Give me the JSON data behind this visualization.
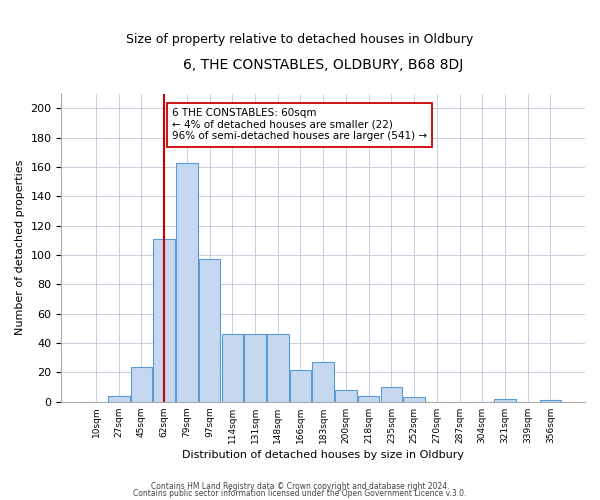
{
  "title": "6, THE CONSTABLES, OLDBURY, B68 8DJ",
  "subtitle": "Size of property relative to detached houses in Oldbury",
  "xlabel": "Distribution of detached houses by size in Oldbury",
  "ylabel": "Number of detached properties",
  "bar_values": [
    0,
    4,
    24,
    111,
    163,
    97,
    46,
    46,
    46,
    22,
    27,
    8,
    4,
    10,
    3,
    0,
    0,
    0,
    2,
    0,
    1
  ],
  "bin_labels": [
    "10sqm",
    "27sqm",
    "45sqm",
    "62sqm",
    "79sqm",
    "97sqm",
    "114sqm",
    "131sqm",
    "148sqm",
    "166sqm",
    "183sqm",
    "200sqm",
    "218sqm",
    "235sqm",
    "252sqm",
    "270sqm",
    "287sqm",
    "304sqm",
    "321sqm",
    "339sqm",
    "356sqm"
  ],
  "bar_color": "#c5d8f0",
  "bar_edge_color": "#5b9bd5",
  "vline_x": 3,
  "vline_color": "#cc0000",
  "annotation_text": "6 THE CONSTABLES: 60sqm\n← 4% of detached houses are smaller (22)\n96% of semi-detached houses are larger (541) →",
  "annotation_box_color": "#ffffff",
  "annotation_box_edge": "#cc0000",
  "ylim": [
    0,
    210
  ],
  "yticks": [
    0,
    20,
    40,
    60,
    80,
    100,
    120,
    140,
    160,
    180,
    200
  ],
  "footer1": "Contains HM Land Registry data © Crown copyright and database right 2024.",
  "footer2": "Contains public sector information licensed under the Open Government Licence v.3.0.",
  "background_color": "#ffffff",
  "grid_color": "#c0c8d8"
}
